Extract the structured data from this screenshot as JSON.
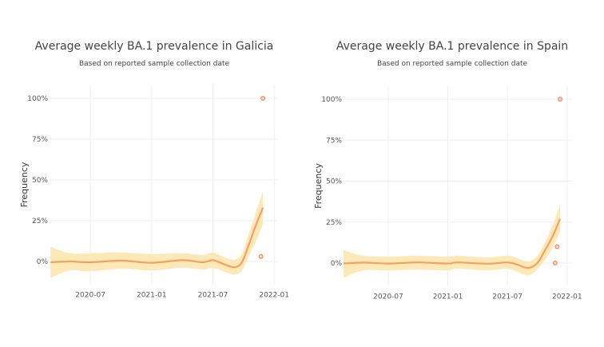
{
  "chart_data": [
    {
      "type": "line",
      "title": "Average weekly BA.1 prevalence in Galicia",
      "subtitle": "Based on reported sample collection date",
      "xlabel": "",
      "ylabel": "Frequency",
      "x_unit": "months since 2020-01",
      "xlim": [
        2.0,
        24.3
      ],
      "ylim": [
        -12,
        108
      ],
      "xticks": [
        {
          "v": 6,
          "label": "2020-07"
        },
        {
          "v": 12,
          "label": "2021-01"
        },
        {
          "v": 18,
          "label": "2021-07"
        },
        {
          "v": 24,
          "label": "2022-01"
        }
      ],
      "yticks": [
        {
          "v": 0,
          "label": "0%"
        },
        {
          "v": 25,
          "label": "25%"
        },
        {
          "v": 50,
          "label": "50%"
        },
        {
          "v": 75,
          "label": "75%"
        },
        {
          "v": 100,
          "label": "100%"
        }
      ],
      "smooth": {
        "x": [
          2.1,
          4,
          6,
          9,
          12,
          15,
          17,
          18,
          19,
          20,
          20.8,
          21.5,
          22.2,
          22.9
        ],
        "y": [
          -0.5,
          0,
          -0.5,
          0.5,
          -0.8,
          0.8,
          -0.5,
          0.8,
          -1.5,
          -3.5,
          -1,
          10,
          22,
          33
        ],
        "lower": [
          -10,
          -5.5,
          -6,
          -4.5,
          -5.5,
          -3.8,
          -5,
          -4,
          -6,
          -8,
          -6,
          3,
          12,
          23
        ],
        "upper": [
          9,
          5,
          5,
          5.5,
          4.5,
          5,
          4,
          5.5,
          3,
          1,
          4.5,
          17,
          30,
          43
        ]
      },
      "points": {
        "x": [
          22.7,
          22.9
        ],
        "y": [
          3,
          100
        ]
      },
      "colors": {
        "line": "#f4a062",
        "band": "#fde9b8",
        "point": "#f08a6a",
        "grid": "#eeeeee"
      }
    },
    {
      "type": "line",
      "title": "Average weekly BA.1 prevalence in Spain",
      "subtitle": "Based on reported sample collection date",
      "xlabel": "",
      "ylabel": "Frequency",
      "x_unit": "months since 2020-01",
      "xlim": [
        1.5,
        24.5
      ],
      "ylim": [
        -12,
        108
      ],
      "xticks": [
        {
          "v": 6,
          "label": "2020-07"
        },
        {
          "v": 12,
          "label": "2021-01"
        },
        {
          "v": 18,
          "label": "2021-07"
        },
        {
          "v": 24,
          "label": "2022-01"
        }
      ],
      "yticks": [
        {
          "v": 0,
          "label": "0%"
        },
        {
          "v": 25,
          "label": "25%"
        },
        {
          "v": 50,
          "label": "50%"
        },
        {
          "v": 75,
          "label": "75%"
        },
        {
          "v": 100,
          "label": "100%"
        }
      ],
      "smooth": {
        "x": [
          1.5,
          3.5,
          6,
          9,
          12,
          13,
          16,
          18,
          19,
          20.1,
          21,
          21.8,
          22.6,
          23.3
        ],
        "y": [
          -0.3,
          0.3,
          -0.3,
          0.4,
          -0.3,
          0.4,
          -0.4,
          0.4,
          -1,
          -3,
          0,
          8,
          17,
          27
        ],
        "lower": [
          -9,
          -4.5,
          -4.5,
          -4,
          -4.5,
          -3.5,
          -4.5,
          -3.5,
          -5.5,
          -7.5,
          -4,
          2,
          10,
          19
        ],
        "upper": [
          8,
          4.5,
          4,
          4.5,
          4,
          4.5,
          3.5,
          4.5,
          3,
          1,
          4.5,
          13,
          24,
          36
        ]
      },
      "points": {
        "x": [
          22.8,
          23.0,
          23.3
        ],
        "y": [
          0,
          10,
          100
        ]
      },
      "colors": {
        "line": "#f4a062",
        "band": "#fde9b8",
        "point": "#f08a6a",
        "grid": "#eeeeee"
      }
    }
  ]
}
